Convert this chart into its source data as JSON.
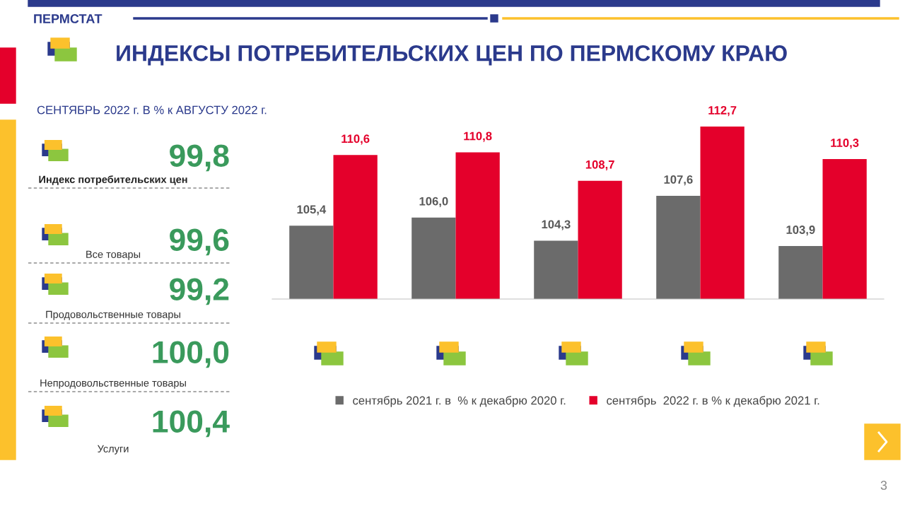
{
  "chart_data": [
    {
      "type": "other",
      "title": "ИНДЕКСЫ ПОТРЕБИТЕЛЬСКИХ ЦЕН ПО ПЕРМСКОМУ КРАЮ",
      "subtitle": "СЕНТЯБРЬ 2022 г. В % к АВГУСТУ 2022 г.",
      "annotations": [
        "ПЕРМСТАТ",
        "3",
        "Индекс потребительских цен",
        "99,8",
        "Все товары",
        "99,6",
        "Продовольственные товары",
        "99,2",
        "Непродовольственные товары",
        "100,0",
        "Услуги",
        "100,4"
      ]
    },
    {
      "type": "bar",
      "categories": [
        null,
        null,
        null,
        null,
        null
      ],
      "series": [
        {
          "name": "сентябрь 2021 г. в  % к декабрю 2020 г.",
          "color": "#6b6b6b",
          "values": [
            105.4,
            106.0,
            104.3,
            107.6,
            103.9
          ],
          "value_labels": [
            "105,4",
            "106,0",
            "104,3",
            "107,6",
            "103,9"
          ]
        },
        {
          "name": "сентябрь  2022 г. в % к декабрю 2021 г.",
          "color": "#e4002b",
          "values": [
            110.6,
            110.8,
            108.7,
            112.7,
            110.3
          ],
          "value_labels": [
            "110,6",
            "110,8",
            "108,7",
            "112,7",
            "110,3"
          ]
        }
      ],
      "ylim": [
        100,
        112.7
      ],
      "grid": false,
      "legend": "bottom"
    }
  ]
}
